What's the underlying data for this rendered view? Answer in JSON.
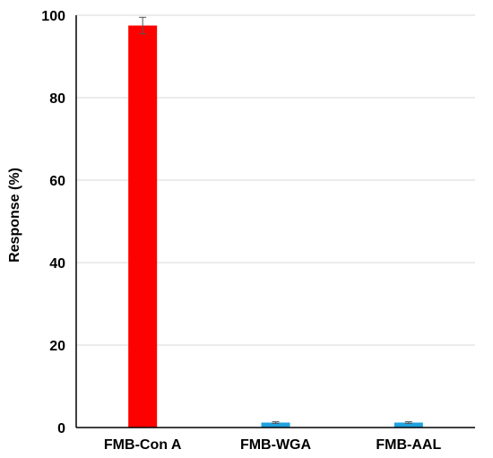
{
  "chart_data": {
    "type": "bar",
    "title": "",
    "xlabel": "",
    "ylabel": "Response (%)",
    "ylim": [
      0,
      100
    ],
    "y_ticks": [
      0,
      20,
      40,
      60,
      80,
      100
    ],
    "grid": true,
    "categories": [
      "FMB-Con A",
      "FMB-WGA",
      "FMB-AAL"
    ],
    "values": [
      97.5,
      1.2,
      1.2
    ],
    "errors": [
      2.0,
      0.2,
      0.2
    ],
    "colors": [
      "#ff0000",
      "#1fa2dd",
      "#1fa2dd"
    ]
  }
}
